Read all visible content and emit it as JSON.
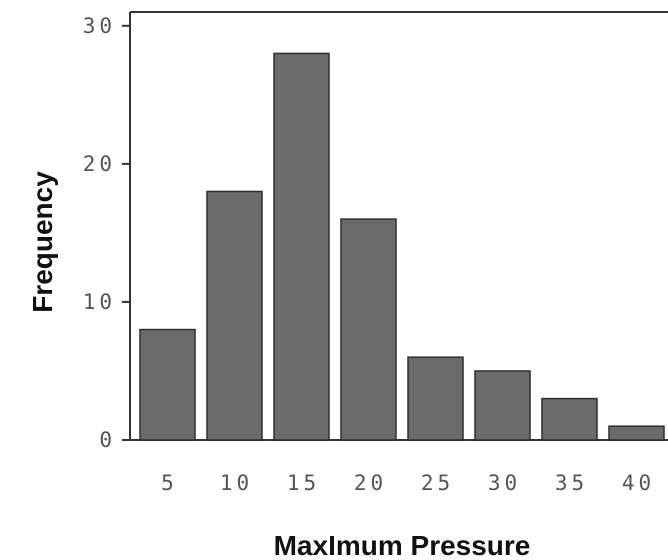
{
  "chart_data": {
    "type": "bar",
    "xlabel": "MaxImum Pressure",
    "ylabel": "Frequency",
    "categories": [
      "5",
      "10",
      "15",
      "20",
      "25",
      "30",
      "35",
      "40"
    ],
    "values": [
      8,
      18,
      28,
      16,
      6,
      5,
      3,
      1
    ],
    "ylim": [
      0,
      31
    ],
    "yticks": [
      0,
      10,
      20,
      30
    ],
    "grid": false,
    "bar_color": "#6b6b6b",
    "bar_edge_color": "#2e2e2e",
    "axis_color": "#333333"
  }
}
